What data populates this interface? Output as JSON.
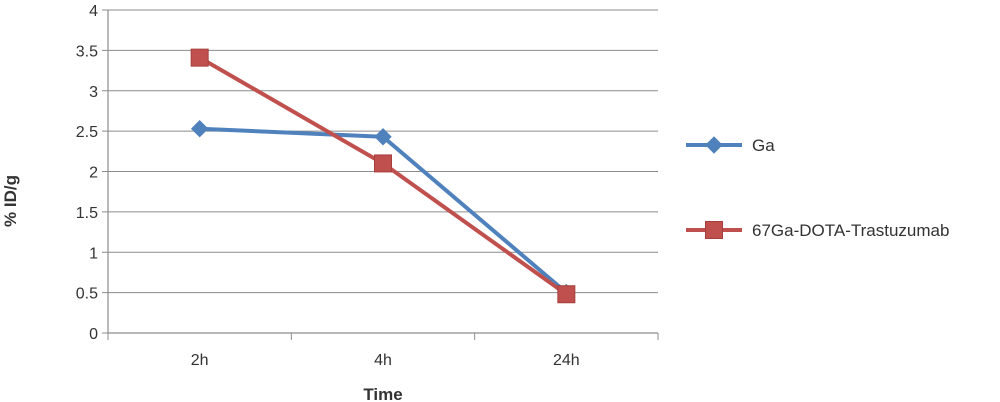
{
  "chart_data": {
    "type": "line",
    "categories": [
      "2h",
      "4h",
      "24h"
    ],
    "series": [
      {
        "name": "Ga",
        "values": [
          2.53,
          2.43,
          0.5
        ],
        "color": "#4F81BD",
        "marker": "diamond"
      },
      {
        "name": "67Ga-DOTA-Trastuzumab",
        "values": [
          3.41,
          2.1,
          0.48
        ],
        "color": "#C0504D",
        "marker": "square"
      }
    ],
    "xlabel": "Time",
    "ylabel": "% ID/g",
    "ylim": [
      0,
      4
    ],
    "yticks": [
      "0",
      "0.5",
      "1",
      "1.5",
      "2",
      "2.5",
      "3",
      "3.5",
      "4"
    ],
    "grid": true,
    "legend": "right"
  }
}
